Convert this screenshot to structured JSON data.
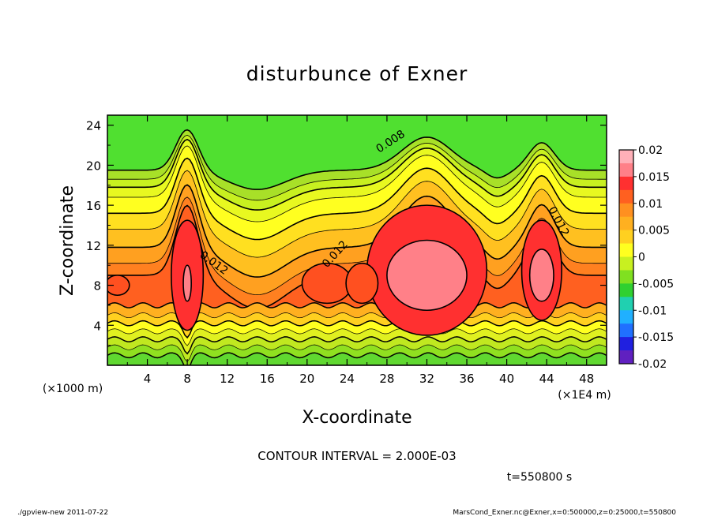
{
  "chart_data": {
    "type": "heatmap",
    "title": "disturbunce of Exner",
    "xlabel": "X-coordinate",
    "ylabel": "Z-coordinate",
    "x_unit_label": "(×1E4 m)",
    "y_unit_label": "(×1000 m)",
    "xlim": [
      0,
      50
    ],
    "ylim": [
      0,
      25
    ],
    "x_ticks": [
      "4",
      "8",
      "12",
      "16",
      "20",
      "24",
      "28",
      "32",
      "36",
      "40",
      "44",
      "48"
    ],
    "y_ticks": [
      "4",
      "8",
      "12",
      "16",
      "20",
      "24"
    ],
    "colorbar": {
      "levels": [
        "0.02",
        "0.015",
        "0.01",
        "0.005",
        "0",
        "-0.005",
        "-0.01",
        "-0.015",
        "-0.02"
      ],
      "colors": [
        "#ffb0b8",
        "#ff8088",
        "#ff3030",
        "#ff6020",
        "#ff9020",
        "#ffb020",
        "#ffd020",
        "#ffff20",
        "#c8f020",
        "#80e020",
        "#30d030",
        "#20d0b0",
        "#20b0ff",
        "#2070ff",
        "#2020e0",
        "#6020c0"
      ]
    },
    "contour_labels": [
      "0.008",
      "0.012",
      "0.012",
      "0.012"
    ],
    "contour_interval": "CONTOUR INTERVAL = 2.000E-03",
    "time": "t=550800 s"
  },
  "footer": {
    "left": "./gpview-new   2011-07-22",
    "right": "MarsCond_Exner.nc@Exner,x=0:500000,z=0:25000,t=550800"
  }
}
